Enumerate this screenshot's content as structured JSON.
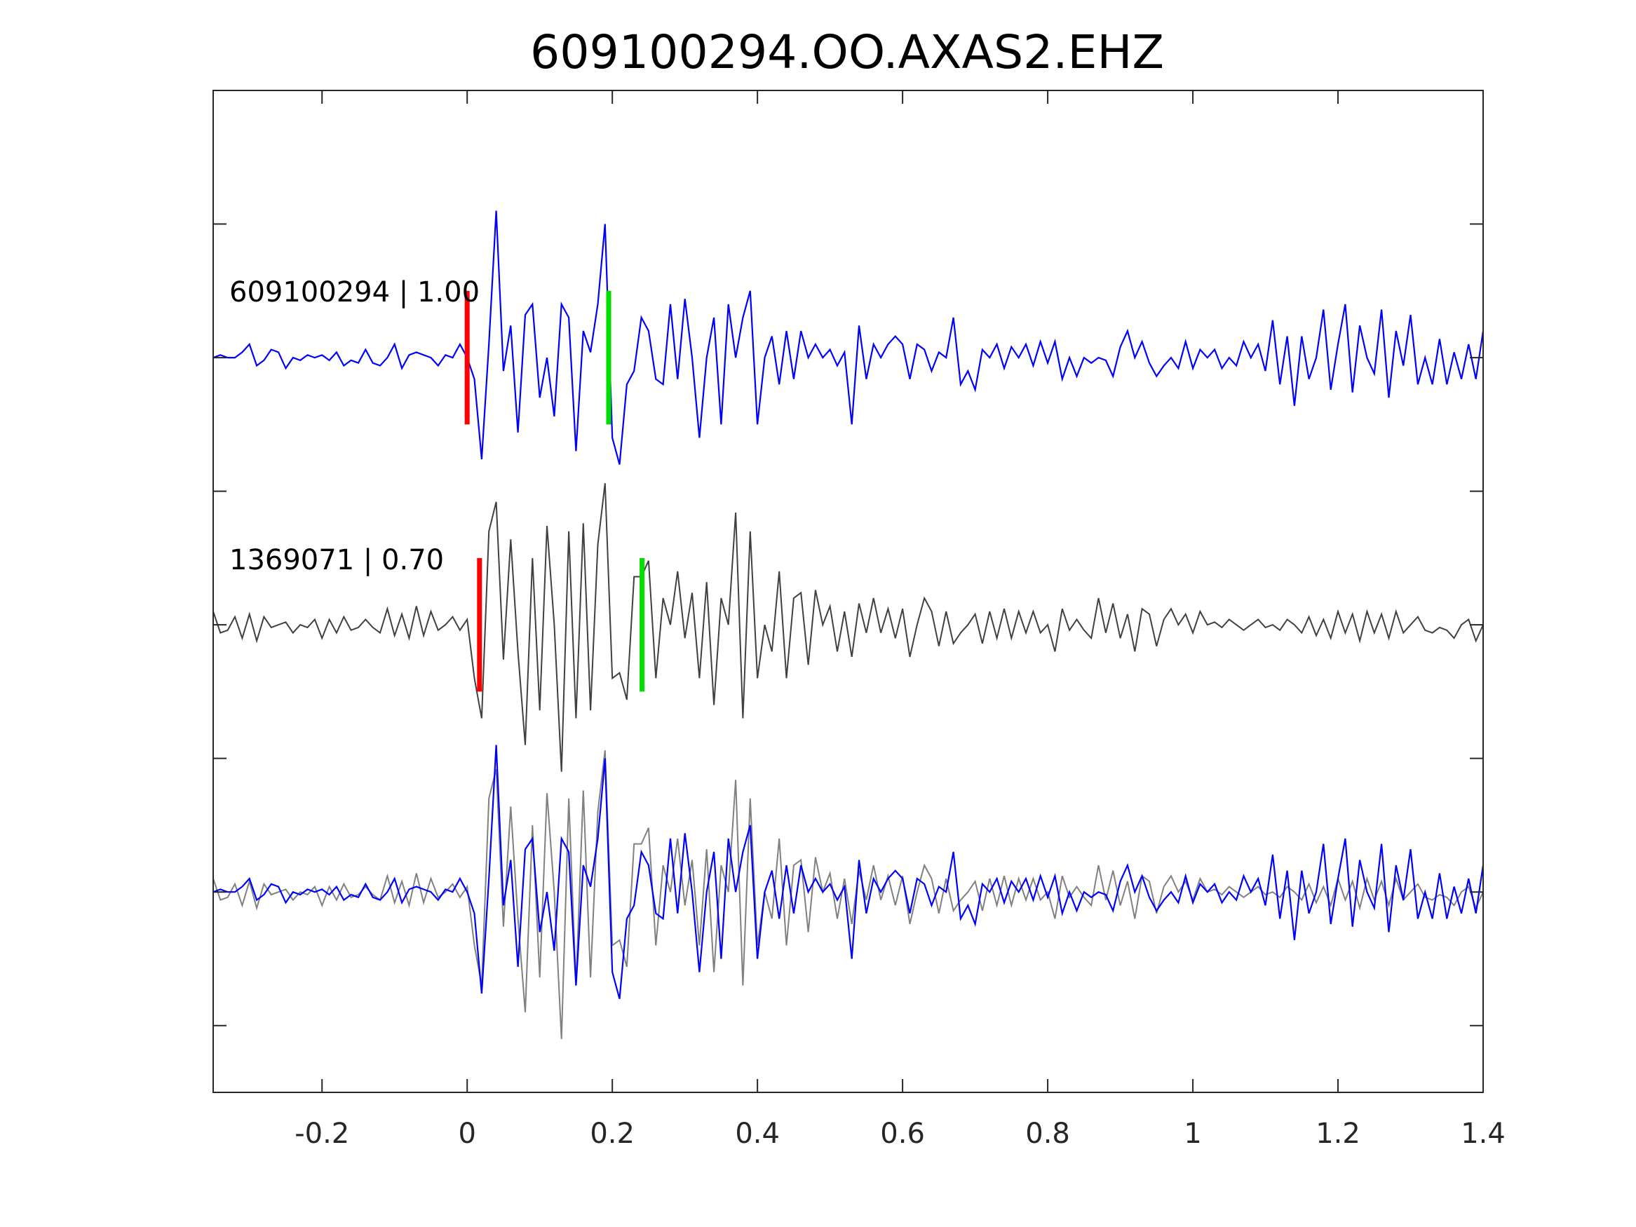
{
  "chart_data": {
    "type": "line",
    "title": "609100294.OO.AXAS2.EHZ",
    "xlabel": "",
    "ylabel": "",
    "xlim": [
      -0.35,
      1.4
    ],
    "ylim": [
      0,
      3.75
    ],
    "y_reversed": true,
    "grid": false,
    "x_ticks": [
      -0.2,
      0,
      0.2,
      0.4,
      0.6,
      0.8,
      1,
      1.2,
      1.4
    ],
    "x_tick_labels": [
      "-0.2",
      "0",
      "0.2",
      "0.4",
      "0.6",
      "0.8",
      "1",
      "1.2",
      "1.4"
    ],
    "y_ticks": [
      0.5,
      1,
      1.5,
      2,
      2.5,
      3,
      3.5
    ],
    "t_start": -0.35,
    "t_step": 0.01,
    "colors": {
      "trace1": "#0000ff",
      "trace2": "#404040",
      "overlay2": "#808080",
      "pick_p": "#ff0000",
      "pick_s": "#00dd00",
      "axes": "#262626"
    },
    "traces": [
      {
        "name": "609100294",
        "label": "609100294 | 1.00",
        "offset": 1,
        "p_pick": 0.0,
        "s_pick": 0.195,
        "values": [
          0.0,
          0.01,
          0.0,
          0.0,
          0.02,
          0.05,
          -0.03,
          -0.01,
          0.03,
          0.02,
          -0.04,
          0.0,
          -0.01,
          0.01,
          0.0,
          0.01,
          -0.01,
          0.02,
          -0.03,
          -0.01,
          -0.02,
          0.03,
          -0.02,
          -0.03,
          0.0,
          0.05,
          -0.04,
          0.01,
          0.02,
          0.01,
          0.0,
          -0.03,
          0.01,
          0.0,
          0.05,
          0.0,
          -0.08,
          -0.38,
          0.05,
          0.55,
          -0.05,
          0.12,
          -0.28,
          0.16,
          0.2,
          -0.15,
          0.0,
          -0.22,
          0.2,
          0.15,
          -0.35,
          0.1,
          0.02,
          0.2,
          0.5,
          -0.3,
          -0.4,
          -0.1,
          -0.05,
          0.15,
          0.1,
          -0.08,
          -0.1,
          0.2,
          -0.08,
          0.22,
          0.0,
          -0.3,
          0.0,
          0.15,
          -0.25,
          0.2,
          0.0,
          0.15,
          0.25,
          -0.25,
          0.0,
          0.08,
          -0.1,
          0.1,
          -0.08,
          0.1,
          0.0,
          0.05,
          0.0,
          0.03,
          -0.03,
          0.02,
          -0.25,
          0.12,
          -0.08,
          0.05,
          0.0,
          0.05,
          0.08,
          0.05,
          -0.08,
          0.05,
          0.03,
          -0.05,
          0.02,
          0.0,
          0.15,
          -0.1,
          -0.05,
          -0.12,
          0.03,
          0.0,
          0.05,
          -0.04,
          0.04,
          0.0,
          0.05,
          -0.03,
          0.06,
          -0.02,
          0.06,
          -0.08,
          0.0,
          -0.07,
          0.0,
          -0.02,
          0.0,
          -0.01,
          -0.07,
          0.04,
          0.1,
          0.0,
          0.06,
          -0.02,
          -0.07,
          -0.03,
          0.0,
          -0.04,
          0.06,
          -0.04,
          0.03,
          0.0,
          0.03,
          -0.04,
          0.0,
          -0.03,
          0.06,
          0.0,
          0.05,
          -0.05,
          0.14,
          -0.1,
          0.08,
          -0.18,
          0.08,
          -0.08,
          0.0,
          0.18,
          -0.12,
          0.05,
          0.2,
          -0.13,
          0.12,
          0.0,
          -0.06,
          0.18,
          -0.15,
          0.1,
          -0.03,
          0.16,
          -0.1,
          0.0,
          -0.1,
          0.07,
          -0.1,
          0.02,
          -0.08,
          0.05,
          -0.08,
          0.1
        ]
      },
      {
        "name": "1369071",
        "label": "1369071 | 0.70",
        "offset": 2,
        "p_pick": 0.017,
        "s_pick": 0.241,
        "values": [
          0.05,
          -0.03,
          -0.02,
          0.03,
          -0.05,
          0.04,
          -0.06,
          0.03,
          -0.01,
          0.0,
          0.01,
          -0.03,
          0.0,
          -0.01,
          0.02,
          -0.05,
          0.02,
          -0.03,
          0.03,
          -0.02,
          -0.01,
          0.02,
          -0.01,
          -0.03,
          0.06,
          -0.04,
          0.04,
          -0.05,
          0.07,
          -0.04,
          0.05,
          -0.02,
          0.0,
          0.03,
          -0.02,
          0.02,
          -0.2,
          -0.35,
          0.35,
          0.46,
          -0.13,
          0.32,
          -0.1,
          -0.45,
          0.25,
          -0.32,
          0.37,
          0.0,
          -0.55,
          0.35,
          -0.35,
          0.38,
          -0.32,
          0.3,
          0.53,
          -0.2,
          -0.18,
          -0.28,
          0.18,
          0.18,
          0.24,
          -0.2,
          0.1,
          0.0,
          0.2,
          -0.05,
          0.12,
          -0.2,
          0.16,
          -0.3,
          0.1,
          0.0,
          0.42,
          -0.35,
          0.35,
          -0.2,
          0.0,
          -0.1,
          0.2,
          -0.2,
          0.1,
          0.12,
          -0.15,
          0.13,
          0.0,
          0.07,
          -0.1,
          0.05,
          -0.12,
          0.08,
          -0.03,
          0.1,
          -0.03,
          0.06,
          -0.05,
          0.06,
          -0.12,
          0.0,
          0.1,
          0.05,
          -0.08,
          0.05,
          -0.07,
          -0.03,
          0.0,
          0.04,
          -0.07,
          0.05,
          -0.05,
          0.06,
          -0.05,
          0.05,
          -0.03,
          0.05,
          -0.03,
          0.0,
          -0.1,
          0.06,
          -0.02,
          0.02,
          -0.02,
          -0.05,
          0.1,
          -0.03,
          0.08,
          -0.05,
          0.04,
          -0.1,
          0.06,
          0.04,
          -0.08,
          0.02,
          0.06,
          0.0,
          0.04,
          -0.03,
          0.05,
          0.0,
          0.01,
          -0.01,
          0.02,
          0.0,
          -0.02,
          0.0,
          0.02,
          -0.01,
          0.0,
          -0.02,
          0.02,
          0.0,
          -0.03,
          0.03,
          -0.04,
          0.02,
          -0.05,
          0.05,
          -0.03,
          0.04,
          -0.06,
          0.05,
          -0.03,
          0.04,
          -0.05,
          0.05,
          -0.03,
          0.0,
          0.03,
          -0.02,
          -0.03,
          -0.01,
          -0.02,
          -0.05,
          0.0,
          0.02,
          -0.06,
          0.0
        ]
      }
    ],
    "overlay": {
      "offset": 3,
      "series": [
        "609100294",
        "1369071"
      ]
    }
  }
}
